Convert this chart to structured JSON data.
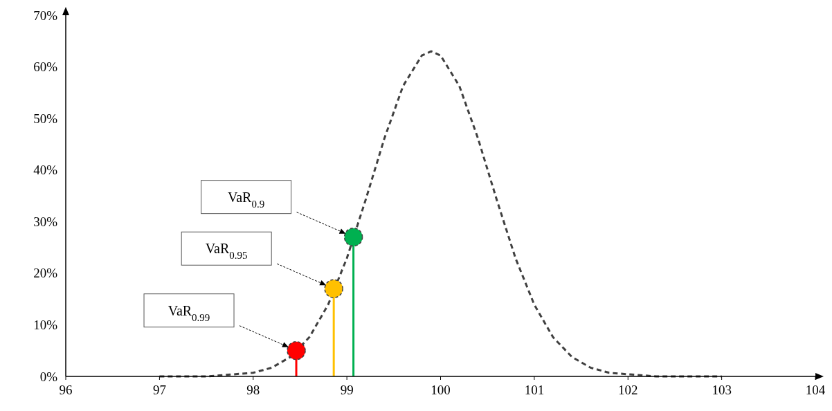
{
  "chart_data": {
    "type": "line",
    "xlim": [
      96,
      104
    ],
    "xticks": [
      96,
      97,
      98,
      99,
      100,
      101,
      102,
      103,
      104
    ],
    "ylim": [
      0,
      70
    ],
    "yticks": [
      {
        "value": 0,
        "label": "0%"
      },
      {
        "value": 10,
        "label": "10%"
      },
      {
        "value": 20,
        "label": "20%"
      },
      {
        "value": 30,
        "label": "30%"
      },
      {
        "value": 40,
        "label": "40%"
      },
      {
        "value": 50,
        "label": "50%"
      },
      {
        "value": 60,
        "label": "60%"
      },
      {
        "value": 70,
        "label": "70%"
      }
    ],
    "grid": false,
    "series": [
      {
        "type": "line",
        "color": "#404040",
        "line_style": "dashed",
        "marker": "none",
        "x": [
          97,
          97.5,
          98,
          98.2,
          98.4,
          98.6,
          98.8,
          99,
          99.2,
          99.4,
          99.6,
          99.8,
          99.9,
          100,
          100.2,
          100.4,
          100.6,
          100.8,
          101,
          101.2,
          101.4,
          101.6,
          101.8,
          102.3,
          102.8,
          103
        ],
        "values": [
          0,
          0,
          0.7,
          1.7,
          3.8,
          7.6,
          13.9,
          22.9,
          34.2,
          46.1,
          56.3,
          62.2,
          63,
          62.2,
          56.3,
          46.1,
          34.2,
          22.9,
          13.9,
          7.6,
          3.8,
          1.7,
          0.7,
          0,
          0,
          0
        ]
      },
      {
        "type": "lollipop",
        "marker": "circle",
        "x": [
          98.46,
          98.86,
          99.07
        ],
        "values": [
          5,
          17,
          27
        ],
        "colors": [
          "#ff0000",
          "#ffc000",
          "#00b050"
        ]
      }
    ],
    "annotations": [
      "VaR$_{0.99}$",
      "VaR$_{0.95}$",
      "VaR$_{0.9}$"
    ]
  }
}
